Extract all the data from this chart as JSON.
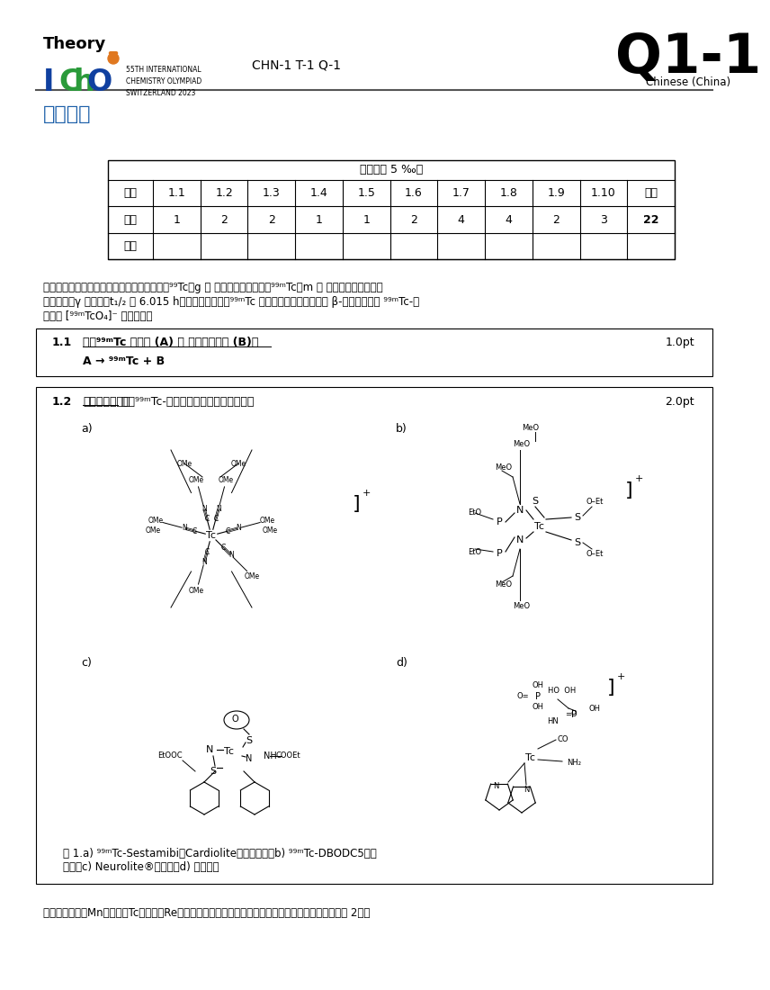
{
  "page_bg": "#ffffff",
  "header_theory": "Theory",
  "header_code": "CHN-1 T-1 Q-1",
  "header_q": "Q1-1",
  "header_lang": "Chinese (China)",
  "section_title": "分子成像",
  "table_header": "占总成绩 5 ‰。",
  "table_row1_label": "小题",
  "table_row1": [
    "1.1",
    "1.2",
    "1.3",
    "1.4",
    "1.5",
    "1.6",
    "1.7",
    "1.8",
    "1.9",
    "1.10",
    "总分"
  ],
  "table_row2_label": "分値",
  "table_row2": [
    "1",
    "2",
    "2",
    "1",
    "1",
    "2",
    "4",
    "4",
    "2",
    "3",
    "22"
  ],
  "table_row3_label": "得分",
  "para1_line1": "分子成像是医学诊断的有力工具。作为同位素⁹⁹Tc（g ＝ 基态）的核异构体，⁹⁹ᵐTc（m ＝ 亚稳态）具有良好的",
  "para1_line2": "辐射特性（γ 辐射体、t₁/₂ ＝ 6.015 h），可用于成像。⁹⁹ᵐTc 在锁发生器中通过母核的 β-衰变得到，以 ⁹⁹ᵐTc-高",
  "para1_line3": "锄酸盐 [⁹⁹ᵐTcO₄]⁻ 形式存在。",
  "q11_num": "1.1",
  "q11_text_underline": "确定⁹⁹ᵐTc 的母核 (A) 和 放射出的粒子 (B)。",
  "q11_pts": "1.0pt",
  "q11_answer": "A → ⁹⁹ᵐTc + B",
  "q12_num": "1.2",
  "q12_text_bold_underline": "在答题纸上写出",
  "q12_text_normal": " 下列⁹⁹ᵐTc-探针中放射性金属的氧化态。",
  "q12_pts": "2.0pt",
  "fig_caption_line1": "图 1.a) ⁹⁹ᵐTc-Sestamibi（Cardiolite）心脏成像；b) ⁹⁹ᵐTc-DBODC5心脏",
  "fig_caption_line2": "成像；c) Neurolite®脑成像；d) 骨成像。",
  "footer_text": "第七族元素锶（Mn）、锷（Tc）和酥（Re）的氧化还原电势与元素周期表中的总体趋势一致（见下文图 2）。",
  "blue_color": "#1a5ea8",
  "icho_blue": "#1040a0",
  "icho_green": "#2a9a3a",
  "conf_text": "55TH INTERNATIONAL\nCHEMISTRY OLYMPIAD\nSWITZERLAND 2023"
}
